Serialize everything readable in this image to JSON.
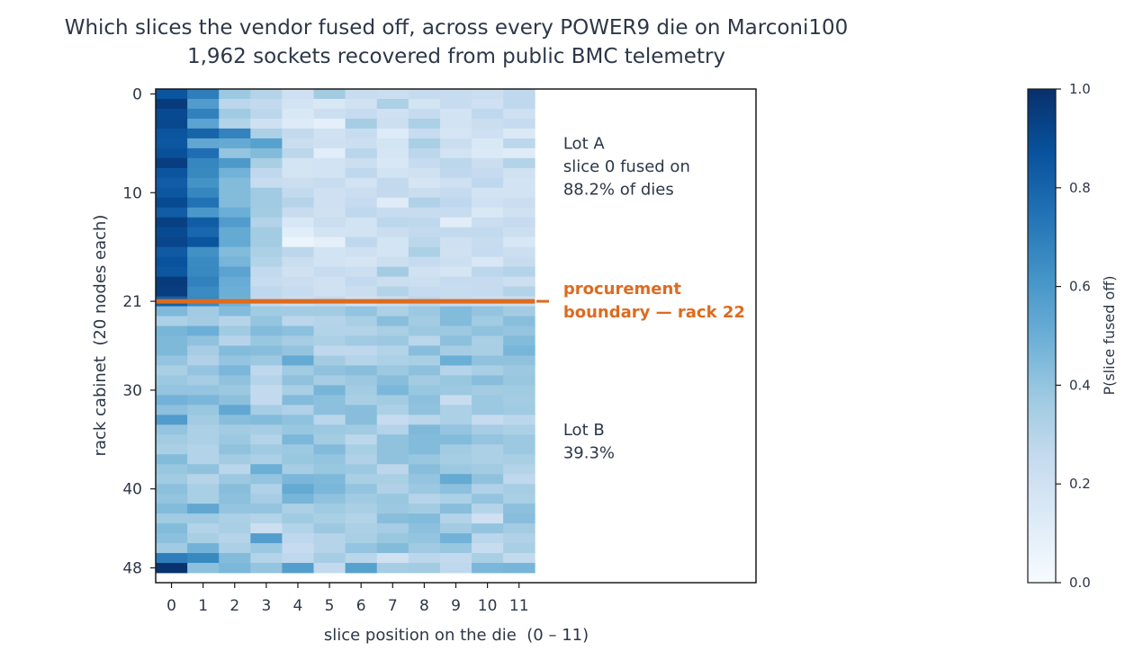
{
  "chart_data": {
    "type": "heatmap",
    "title": "Which slices the vendor fused off, across every POWER9 die on Marconi100",
    "subtitle": "1,962 sockets recovered from public BMC telemetry",
    "xlabel": "slice position on the die  (0 – 11)",
    "ylabel": "rack cabinet  (20 nodes each)",
    "x_ticks": [
      "0",
      "1",
      "2",
      "3",
      "4",
      "5",
      "6",
      "7",
      "8",
      "9",
      "10",
      "11"
    ],
    "y_ticks": [
      {
        "value": 0,
        "label": "0"
      },
      {
        "value": 10,
        "label": "10"
      },
      {
        "value": 21,
        "label": "21"
      },
      {
        "value": 30,
        "label": "30"
      },
      {
        "value": 40,
        "label": "40"
      },
      {
        "value": 48,
        "label": "48"
      }
    ],
    "xlim": [
      -0.5,
      18.5
    ],
    "ylim": [
      -0.5,
      49.5
    ],
    "colorbar": {
      "label": "P(slice fused off)",
      "range": [
        0,
        1
      ],
      "ticks": [
        "0.0",
        "0.2",
        "0.4",
        "0.6",
        "0.8",
        "1.0"
      ],
      "colormap": "Blues"
    },
    "boundary": {
      "y": 21,
      "label_line1": "procurement",
      "label_line2": "boundary — rack 22",
      "color": "#dd6b20"
    },
    "annotations": [
      {
        "lines": [
          "Lot A",
          "slice 0 fused on",
          "88.2% of dies"
        ],
        "y": 5
      },
      {
        "lines": [
          "Lot B",
          "39.3%"
        ],
        "y": 34
      }
    ],
    "columns": 12,
    "rows": 49,
    "values": [
      [
        0.86,
        0.7,
        0.38,
        0.3,
        0.21,
        0.36,
        0.24,
        0.23,
        0.25,
        0.24,
        0.23,
        0.27
      ],
      [
        0.96,
        0.58,
        0.28,
        0.26,
        0.19,
        0.15,
        0.2,
        0.33,
        0.18,
        0.24,
        0.21,
        0.27
      ],
      [
        0.9,
        0.69,
        0.37,
        0.28,
        0.15,
        0.22,
        0.25,
        0.21,
        0.25,
        0.19,
        0.27,
        0.21
      ],
      [
        0.91,
        0.55,
        0.31,
        0.21,
        0.13,
        0.09,
        0.35,
        0.22,
        0.33,
        0.19,
        0.23,
        0.25
      ],
      [
        0.86,
        0.8,
        0.68,
        0.33,
        0.26,
        0.2,
        0.24,
        0.13,
        0.24,
        0.17,
        0.21,
        0.14
      ],
      [
        0.85,
        0.53,
        0.52,
        0.56,
        0.23,
        0.21,
        0.22,
        0.18,
        0.34,
        0.23,
        0.15,
        0.28
      ],
      [
        0.88,
        0.76,
        0.4,
        0.44,
        0.28,
        0.11,
        0.29,
        0.17,
        0.28,
        0.19,
        0.14,
        0.12
      ],
      [
        0.95,
        0.67,
        0.59,
        0.34,
        0.18,
        0.19,
        0.22,
        0.16,
        0.25,
        0.28,
        0.23,
        0.31
      ],
      [
        0.86,
        0.66,
        0.48,
        0.27,
        0.18,
        0.19,
        0.27,
        0.19,
        0.2,
        0.27,
        0.25,
        0.2
      ],
      [
        0.83,
        0.62,
        0.44,
        0.24,
        0.23,
        0.24,
        0.19,
        0.26,
        0.17,
        0.21,
        0.27,
        0.19
      ],
      [
        0.85,
        0.67,
        0.44,
        0.37,
        0.26,
        0.21,
        0.23,
        0.26,
        0.23,
        0.25,
        0.19,
        0.19
      ],
      [
        0.9,
        0.75,
        0.44,
        0.37,
        0.3,
        0.21,
        0.25,
        0.12,
        0.32,
        0.27,
        0.21,
        0.23
      ],
      [
        0.83,
        0.6,
        0.5,
        0.36,
        0.24,
        0.2,
        0.27,
        0.24,
        0.24,
        0.24,
        0.15,
        0.2
      ],
      [
        0.94,
        0.83,
        0.58,
        0.31,
        0.16,
        0.23,
        0.19,
        0.28,
        0.27,
        0.11,
        0.23,
        0.25
      ],
      [
        0.9,
        0.79,
        0.52,
        0.36,
        0.11,
        0.19,
        0.19,
        0.23,
        0.26,
        0.26,
        0.26,
        0.22
      ],
      [
        0.92,
        0.86,
        0.52,
        0.36,
        0.06,
        0.09,
        0.27,
        0.18,
        0.28,
        0.21,
        0.24,
        0.16
      ],
      [
        0.84,
        0.63,
        0.44,
        0.33,
        0.28,
        0.19,
        0.21,
        0.18,
        0.33,
        0.2,
        0.25,
        0.22
      ],
      [
        0.87,
        0.65,
        0.47,
        0.31,
        0.23,
        0.19,
        0.17,
        0.22,
        0.25,
        0.22,
        0.16,
        0.24
      ],
      [
        0.85,
        0.66,
        0.55,
        0.26,
        0.2,
        0.24,
        0.22,
        0.36,
        0.2,
        0.17,
        0.28,
        0.31
      ],
      [
        0.96,
        0.69,
        0.51,
        0.24,
        0.23,
        0.2,
        0.26,
        0.23,
        0.22,
        0.25,
        0.25,
        0.22
      ],
      [
        0.95,
        0.65,
        0.5,
        0.27,
        0.24,
        0.2,
        0.23,
        0.31,
        0.25,
        0.24,
        0.25,
        0.31
      ],
      [
        0.82,
        0.66,
        0.49,
        0.26,
        0.23,
        0.26,
        0.2,
        0.23,
        0.28,
        0.24,
        0.23,
        0.23
      ],
      [
        0.45,
        0.37,
        0.44,
        0.37,
        0.36,
        0.36,
        0.4,
        0.33,
        0.38,
        0.44,
        0.4,
        0.36
      ],
      [
        0.33,
        0.36,
        0.3,
        0.4,
        0.28,
        0.3,
        0.34,
        0.43,
        0.36,
        0.44,
        0.37,
        0.43
      ],
      [
        0.47,
        0.5,
        0.37,
        0.44,
        0.42,
        0.31,
        0.31,
        0.34,
        0.38,
        0.38,
        0.41,
        0.4
      ],
      [
        0.45,
        0.41,
        0.3,
        0.39,
        0.35,
        0.33,
        0.37,
        0.38,
        0.29,
        0.42,
        0.34,
        0.44
      ],
      [
        0.45,
        0.35,
        0.44,
        0.43,
        0.4,
        0.27,
        0.27,
        0.31,
        0.43,
        0.35,
        0.34,
        0.47
      ],
      [
        0.4,
        0.32,
        0.4,
        0.38,
        0.52,
        0.36,
        0.3,
        0.33,
        0.34,
        0.5,
        0.41,
        0.41
      ],
      [
        0.34,
        0.4,
        0.46,
        0.27,
        0.37,
        0.41,
        0.43,
        0.38,
        0.42,
        0.3,
        0.34,
        0.38
      ],
      [
        0.38,
        0.35,
        0.41,
        0.3,
        0.41,
        0.35,
        0.38,
        0.43,
        0.36,
        0.39,
        0.43,
        0.39
      ],
      [
        0.4,
        0.4,
        0.38,
        0.26,
        0.34,
        0.47,
        0.36,
        0.46,
        0.39,
        0.38,
        0.36,
        0.37
      ],
      [
        0.48,
        0.46,
        0.42,
        0.26,
        0.44,
        0.42,
        0.34,
        0.36,
        0.42,
        0.24,
        0.38,
        0.36
      ],
      [
        0.42,
        0.39,
        0.53,
        0.35,
        0.32,
        0.42,
        0.43,
        0.33,
        0.41,
        0.33,
        0.38,
        0.37
      ],
      [
        0.58,
        0.36,
        0.43,
        0.44,
        0.41,
        0.29,
        0.43,
        0.25,
        0.29,
        0.33,
        0.25,
        0.28
      ],
      [
        0.4,
        0.33,
        0.36,
        0.35,
        0.39,
        0.38,
        0.37,
        0.31,
        0.45,
        0.4,
        0.35,
        0.33
      ],
      [
        0.36,
        0.33,
        0.38,
        0.31,
        0.46,
        0.36,
        0.28,
        0.41,
        0.44,
        0.44,
        0.4,
        0.38
      ],
      [
        0.34,
        0.31,
        0.41,
        0.37,
        0.38,
        0.44,
        0.34,
        0.41,
        0.44,
        0.36,
        0.33,
        0.38
      ],
      [
        0.44,
        0.31,
        0.36,
        0.33,
        0.39,
        0.4,
        0.32,
        0.41,
        0.39,
        0.35,
        0.33,
        0.34
      ],
      [
        0.39,
        0.41,
        0.29,
        0.5,
        0.35,
        0.39,
        0.38,
        0.28,
        0.43,
        0.38,
        0.36,
        0.31
      ],
      [
        0.37,
        0.3,
        0.38,
        0.4,
        0.46,
        0.45,
        0.34,
        0.34,
        0.4,
        0.52,
        0.41,
        0.27
      ],
      [
        0.42,
        0.34,
        0.43,
        0.32,
        0.52,
        0.46,
        0.4,
        0.32,
        0.38,
        0.42,
        0.32,
        0.35
      ],
      [
        0.4,
        0.34,
        0.42,
        0.35,
        0.47,
        0.41,
        0.37,
        0.39,
        0.3,
        0.33,
        0.4,
        0.34
      ],
      [
        0.44,
        0.53,
        0.4,
        0.4,
        0.33,
        0.37,
        0.34,
        0.38,
        0.36,
        0.43,
        0.3,
        0.42
      ],
      [
        0.37,
        0.37,
        0.33,
        0.31,
        0.37,
        0.34,
        0.31,
        0.43,
        0.44,
        0.31,
        0.21,
        0.43
      ],
      [
        0.44,
        0.31,
        0.34,
        0.22,
        0.31,
        0.38,
        0.33,
        0.35,
        0.42,
        0.36,
        0.4,
        0.36
      ],
      [
        0.42,
        0.34,
        0.3,
        0.57,
        0.27,
        0.3,
        0.34,
        0.39,
        0.4,
        0.48,
        0.29,
        0.32
      ],
      [
        0.37,
        0.48,
        0.33,
        0.38,
        0.25,
        0.3,
        0.4,
        0.44,
        0.37,
        0.39,
        0.24,
        0.34
      ],
      [
        0.7,
        0.66,
        0.44,
        0.31,
        0.27,
        0.35,
        0.29,
        0.2,
        0.28,
        0.26,
        0.34,
        0.26
      ],
      [
        0.99,
        0.42,
        0.46,
        0.4,
        0.57,
        0.26,
        0.56,
        0.35,
        0.36,
        0.27,
        0.46,
        0.47
      ]
    ]
  }
}
